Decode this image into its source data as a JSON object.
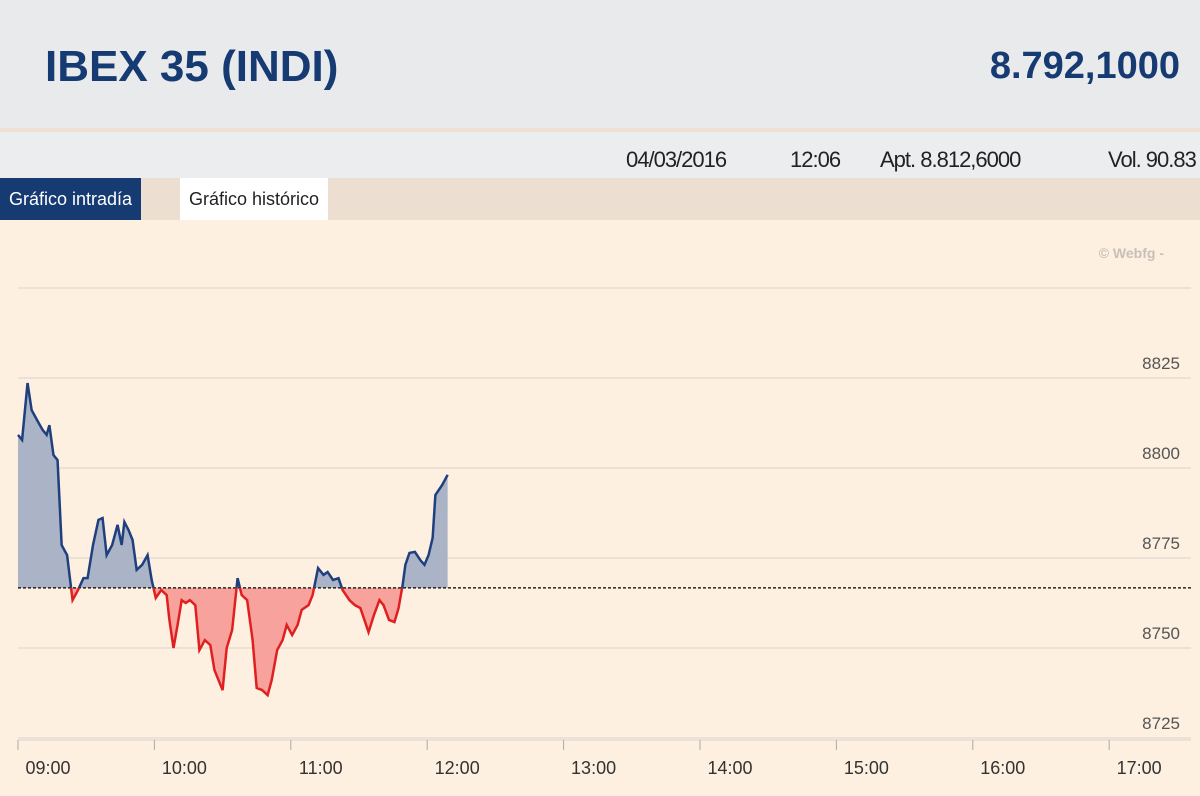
{
  "header": {
    "title": "IBEX 35 (INDI)",
    "value": "8.792,1000"
  },
  "info": {
    "date": "04/03/2016",
    "time": "12:06",
    "apt": "Apt. 8.812,6000",
    "vol": "Vol. 90.83"
  },
  "tabs": [
    "Gráfico intradía",
    "Gráfico histórico"
  ],
  "watermark": "© Webfg -",
  "chart_data": {
    "type": "line",
    "x": [
      9.0,
      9.03,
      9.07,
      9.1,
      9.14,
      9.18,
      9.21,
      9.23,
      9.26,
      9.29,
      9.32,
      9.36,
      9.4,
      9.44,
      9.48,
      9.51,
      9.55,
      9.59,
      9.62,
      9.65,
      9.69,
      9.73,
      9.76,
      9.78,
      9.81,
      9.84,
      9.87,
      9.91,
      9.95,
      9.98,
      10.01,
      10.05,
      10.09,
      10.11,
      10.14,
      10.17,
      10.2,
      10.23,
      10.26,
      10.3,
      10.33,
      10.37,
      10.41,
      10.44,
      10.5,
      10.53,
      10.57,
      10.61,
      10.64,
      10.68,
      10.72,
      10.75,
      10.79,
      10.83,
      10.86,
      10.9,
      10.94,
      10.97,
      11.01,
      11.05,
      11.08,
      11.13,
      11.16,
      11.2,
      11.24,
      11.27,
      11.31,
      11.35,
      11.38,
      11.43,
      11.47,
      11.51,
      11.54,
      11.57,
      11.61,
      11.65,
      11.68,
      11.72,
      11.76,
      11.79,
      11.82,
      11.84,
      11.87,
      11.91,
      11.95,
      11.98,
      12.01,
      12.04,
      12.06,
      12.11,
      12.15
    ],
    "values": [
      8809.2,
      8807.8,
      8823.6,
      8816.1,
      8813.3,
      8810.6,
      8809.2,
      8811.9,
      8803.6,
      8802.2,
      8778.6,
      8775.8,
      8763.3,
      8766.1,
      8769.4,
      8769.4,
      8778.6,
      8785.6,
      8786.1,
      8775.8,
      8778.6,
      8784.2,
      8778.6,
      8785.0,
      8782.8,
      8780.0,
      8771.7,
      8773.1,
      8775.8,
      8768.9,
      8763.9,
      8766.1,
      8764.7,
      8757.8,
      8750.0,
      8756.4,
      8763.3,
      8762.5,
      8763.3,
      8761.9,
      8749.4,
      8752.2,
      8750.8,
      8743.9,
      8738.3,
      8750.0,
      8755.0,
      8769.4,
      8764.7,
      8763.3,
      8752.2,
      8738.9,
      8738.3,
      8736.9,
      8741.1,
      8749.4,
      8752.2,
      8756.4,
      8753.6,
      8756.4,
      8760.6,
      8761.9,
      8764.7,
      8772.2,
      8770.3,
      8771.1,
      8768.9,
      8769.4,
      8766.1,
      8763.3,
      8761.9,
      8761.1,
      8757.8,
      8754.4,
      8759.2,
      8763.3,
      8761.9,
      8757.8,
      8757.2,
      8761.1,
      8767.5,
      8773.1,
      8776.4,
      8776.7,
      8774.4,
      8773.1,
      8775.8,
      8780.6,
      8792.5,
      8795.3,
      8798.1
    ],
    "reference": 8766.7,
    "color_above": "#1f3f7f",
    "color_below": "#e02020",
    "fill_above": "#aab4c6",
    "fill_below": "#f7a29c",
    "xlim": [
      9,
      17.6
    ],
    "xticks": [
      {
        "value": 9,
        "label": "09:00"
      },
      {
        "value": 10,
        "label": "10:00"
      },
      {
        "value": 11,
        "label": "11:00"
      },
      {
        "value": 12,
        "label": "12:00"
      },
      {
        "value": 13,
        "label": "13:00"
      },
      {
        "value": 14,
        "label": "14:00"
      },
      {
        "value": 15,
        "label": "15:00"
      },
      {
        "value": 16,
        "label": "16:00"
      },
      {
        "value": 17,
        "label": "17:00"
      }
    ],
    "ylim": [
      8725,
      8850
    ],
    "yticks": [
      8725,
      8750,
      8775,
      8800,
      8825
    ],
    "grid": true
  }
}
